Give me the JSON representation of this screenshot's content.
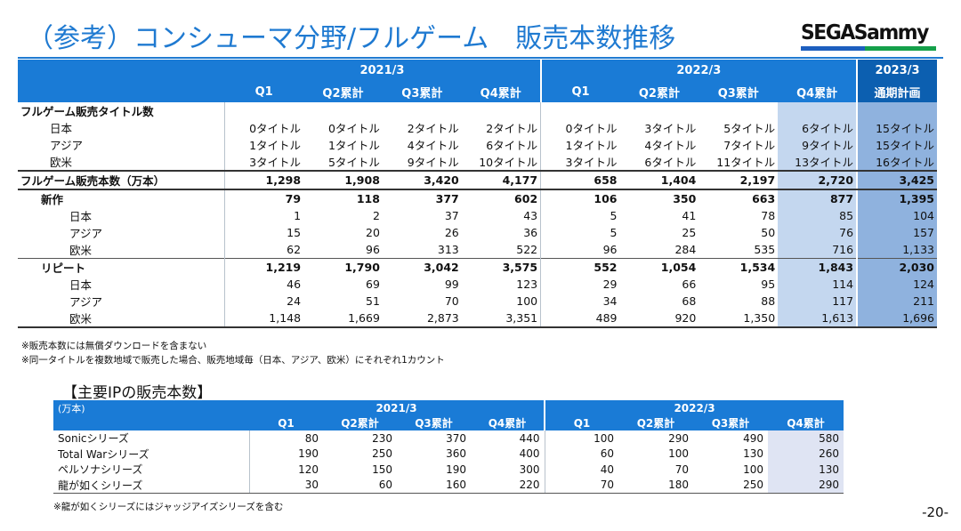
{
  "title": "（参考）コンシューマ分野/フルゲーム　販売本数推移",
  "logo": "SEGASammy",
  "main_table": {
    "year_headers": [
      "2021/3",
      "2022/3",
      "2023/3"
    ],
    "quarter_headers": [
      "Q1",
      "Q2累計",
      "Q3累計",
      "Q4累計",
      "Q1",
      "Q2累計",
      "Q3累計",
      "Q4累計",
      "通期計画"
    ],
    "rows": [
      {
        "label": "フルゲーム販売タイトル数",
        "values": [
          "",
          "",
          "",
          "",
          "",
          "",
          "",
          "",
          ""
        ]
      },
      {
        "label": "日本",
        "values": [
          "0タイトル",
          "0タイトル",
          "2タイトル",
          "2タイトル",
          "0タイトル",
          "3タイトル",
          "5タイトル",
          "6タイトル",
          "15タイトル"
        ]
      },
      {
        "label": "アジア",
        "values": [
          "1タイトル",
          "1タイトル",
          "4タイトル",
          "6タイトル",
          "1タイトル",
          "4タイトル",
          "7タイトル",
          "9タイトル",
          "15タイトル"
        ]
      },
      {
        "label": "欧米",
        "values": [
          "3タイトル",
          "5タイトル",
          "9タイトル",
          "10タイトル",
          "3タイトル",
          "6タイトル",
          "11タイトル",
          "13タイトル",
          "16タイトル"
        ]
      },
      {
        "label": "フルゲーム販売本数（万本）",
        "values": [
          "1,298",
          "1,908",
          "3,420",
          "4,177",
          "658",
          "1,404",
          "2,197",
          "2,720",
          "3,425"
        ]
      },
      {
        "label": "新作",
        "values": [
          "79",
          "118",
          "377",
          "602",
          "106",
          "350",
          "663",
          "877",
          "1,395"
        ]
      },
      {
        "label": "日本",
        "values": [
          "1",
          "2",
          "37",
          "43",
          "5",
          "41",
          "78",
          "85",
          "104"
        ]
      },
      {
        "label": "アジア",
        "values": [
          "15",
          "20",
          "26",
          "36",
          "5",
          "25",
          "50",
          "76",
          "157"
        ]
      },
      {
        "label": "欧米",
        "values": [
          "62",
          "96",
          "313",
          "522",
          "96",
          "284",
          "535",
          "716",
          "1,133"
        ]
      },
      {
        "label": "リピート",
        "values": [
          "1,219",
          "1,790",
          "3,042",
          "3,575",
          "552",
          "1,054",
          "1,534",
          "1,843",
          "2,030"
        ]
      },
      {
        "label": "日本",
        "values": [
          "46",
          "69",
          "99",
          "123",
          "29",
          "66",
          "95",
          "114",
          "124"
        ]
      },
      {
        "label": "アジア",
        "values": [
          "24",
          "51",
          "70",
          "100",
          "34",
          "68",
          "88",
          "117",
          "211"
        ]
      },
      {
        "label": "欧米",
        "values": [
          "1,148",
          "1,669",
          "2,873",
          "3,351",
          "489",
          "920",
          "1,350",
          "1,613",
          "1,696"
        ]
      }
    ]
  },
  "notes": [
    "※販売本数には無償ダウンロードを含まない",
    "※同一タイトルを複数地域で販売した場合、販売地域毎（日本、アジア、欧米）にそれぞれ1カウント"
  ],
  "ip_section": {
    "title": "【主要IPの販売本数】",
    "unit": "(万本)",
    "year_headers": [
      "2021/3",
      "2022/3"
    ],
    "quarter_headers": [
      "Q1",
      "Q2累計",
      "Q3累計",
      "Q4累計",
      "Q1",
      "Q2累計",
      "Q3累計",
      "Q4累計"
    ],
    "rows": [
      {
        "label": "Sonicシリーズ",
        "values": [
          "80",
          "230",
          "370",
          "440",
          "100",
          "290",
          "490",
          "580"
        ]
      },
      {
        "label": "Total Warシリーズ",
        "values": [
          "190",
          "250",
          "360",
          "400",
          "60",
          "100",
          "130",
          "260"
        ]
      },
      {
        "label": "ペルソナシリーズ",
        "values": [
          "120",
          "150",
          "190",
          "300",
          "40",
          "70",
          "100",
          "130"
        ]
      },
      {
        "label": "龍が如くシリーズ",
        "values": [
          "30",
          "60",
          "160",
          "220",
          "70",
          "180",
          "250",
          "290"
        ]
      }
    ],
    "note": "※龍が如くシリーズにはジャッジアイズシリーズを含む"
  },
  "page_number": "-20-",
  "colors": {
    "accent": "#1f7ad1",
    "header_bg": "#1a7bd6",
    "highlight_light": "#c4d7ef",
    "highlight_dark": "#8fb2de"
  }
}
